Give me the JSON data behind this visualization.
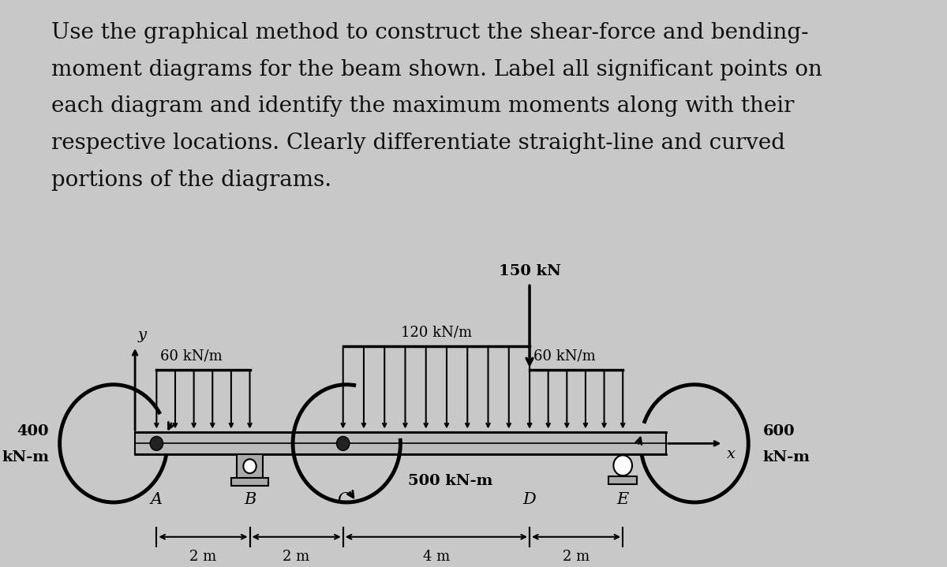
{
  "background_color": "#c8c8c8",
  "text_color": "#111111",
  "title_lines": [
    "Use the graphical method to construct the shear-force and bending-",
    "moment diagrams for the beam shown. Label all significant points on",
    "each diagram and identify the maximum moments along with their",
    "respective locations. Clearly differentiate straight-line and curved",
    "portions of the diagrams."
  ],
  "load_150kN": "150 kN",
  "load_120kNm": "120 kN/m",
  "load_60kNm_left": "60 kN/m",
  "load_60kNm_right": "60 kN/m",
  "moment_left_1": "400",
  "moment_left_2": "kN-m",
  "moment_middle": "500 kN-m",
  "moment_right_1": "600",
  "moment_right_2": "kN-m",
  "point_A": "A",
  "point_B": "B",
  "point_C": "C",
  "point_D": "D",
  "point_E": "E",
  "dist_AB": "2 m",
  "dist_BC": "2 m",
  "dist_CD": "4 m",
  "dist_DE": "2 m",
  "axis_x": "x",
  "axis_y": "y"
}
